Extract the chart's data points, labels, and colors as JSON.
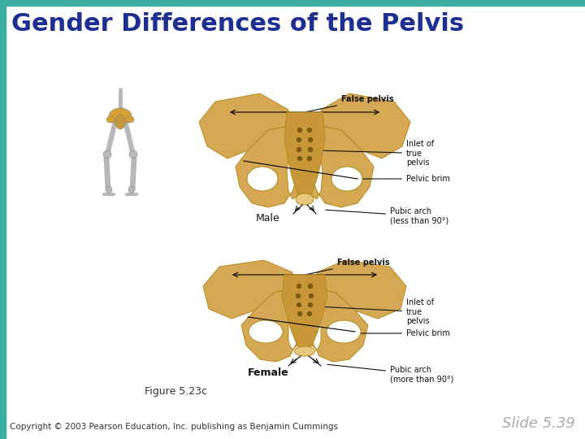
{
  "title": "Gender Differences of the Pelvis",
  "title_color": "#1f2f8f",
  "title_fontsize": 22,
  "bg_color": "#ffffff",
  "top_bar_color": "#3aada0",
  "left_bar_color": "#3aada0",
  "figure_caption": "Figure 5.23c",
  "caption_fontsize": 9,
  "caption_color": "#333333",
  "copyright_text": "Copyright © 2003 Pearson Education, Inc. publishing as Benjamin Cummings",
  "copyright_fontsize": 7.5,
  "copyright_color": "#333333",
  "slide_number": "Slide 5.39",
  "slide_number_fontsize": 13,
  "slide_number_color": "#aaaaaa",
  "male_label": "Male",
  "female_label": "Female",
  "labels_male": [
    "False pelvis",
    "Inlet of\ntrue\npelvis",
    "Pelvic brim",
    "Pubic arch\n(less than 90°)"
  ],
  "labels_female": [
    "False pelvis",
    "Inlet of\ntrue\npelvis",
    "Pelvic brim",
    "Pubic arch\n(more than 90°)"
  ],
  "label_fontsize": 7,
  "annotation_color": "#111111",
  "bone_color": "#d4a855",
  "bone_dark": "#b8891a",
  "bone_light": "#e8c880"
}
